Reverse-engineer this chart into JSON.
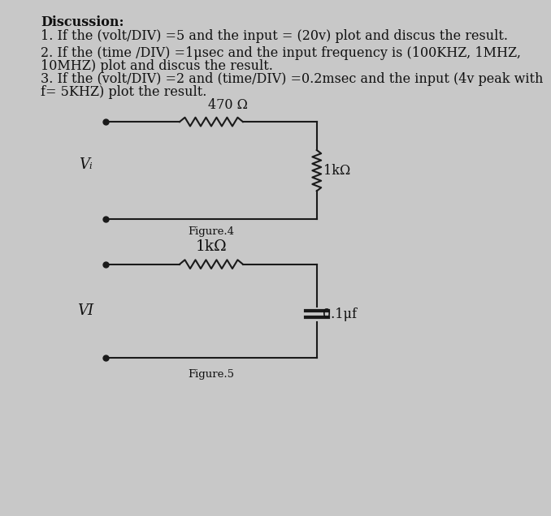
{
  "bg_color": "#c8c8c8",
  "text_color": "#111111",
  "discussion_title": "Discussion:",
  "item1": "1. If the (volt/DIV) =5 and the input = (20v) plot and discus the result.",
  "item2_line1": "2. If the (time /DIV) =1μsec and the input frequency is (100KHZ, 1MHZ,",
  "item2_line2": "10MHZ) plot and discus the result.",
  "item3_line1": "3. If the (volt/DIV) =2 and (time/DIV) =0.2msec and the input (4v peak with",
  "item3_line2": "f= 5KHZ) plot the result.",
  "fig4_top_label": "470 Ω",
  "fig4_right_label": "1kΩ",
  "fig4_vi_label": "Vᵢ",
  "fig4_caption": "Figure.4",
  "fig5_top_label": "1kΩ",
  "fig5_vi_label": "VI",
  "fig5_cap_label": "0.1μf",
  "fig5_caption": "Figure.5",
  "line_color": "#1a1a1a",
  "lw": 1.5,
  "dot_ms": 5
}
